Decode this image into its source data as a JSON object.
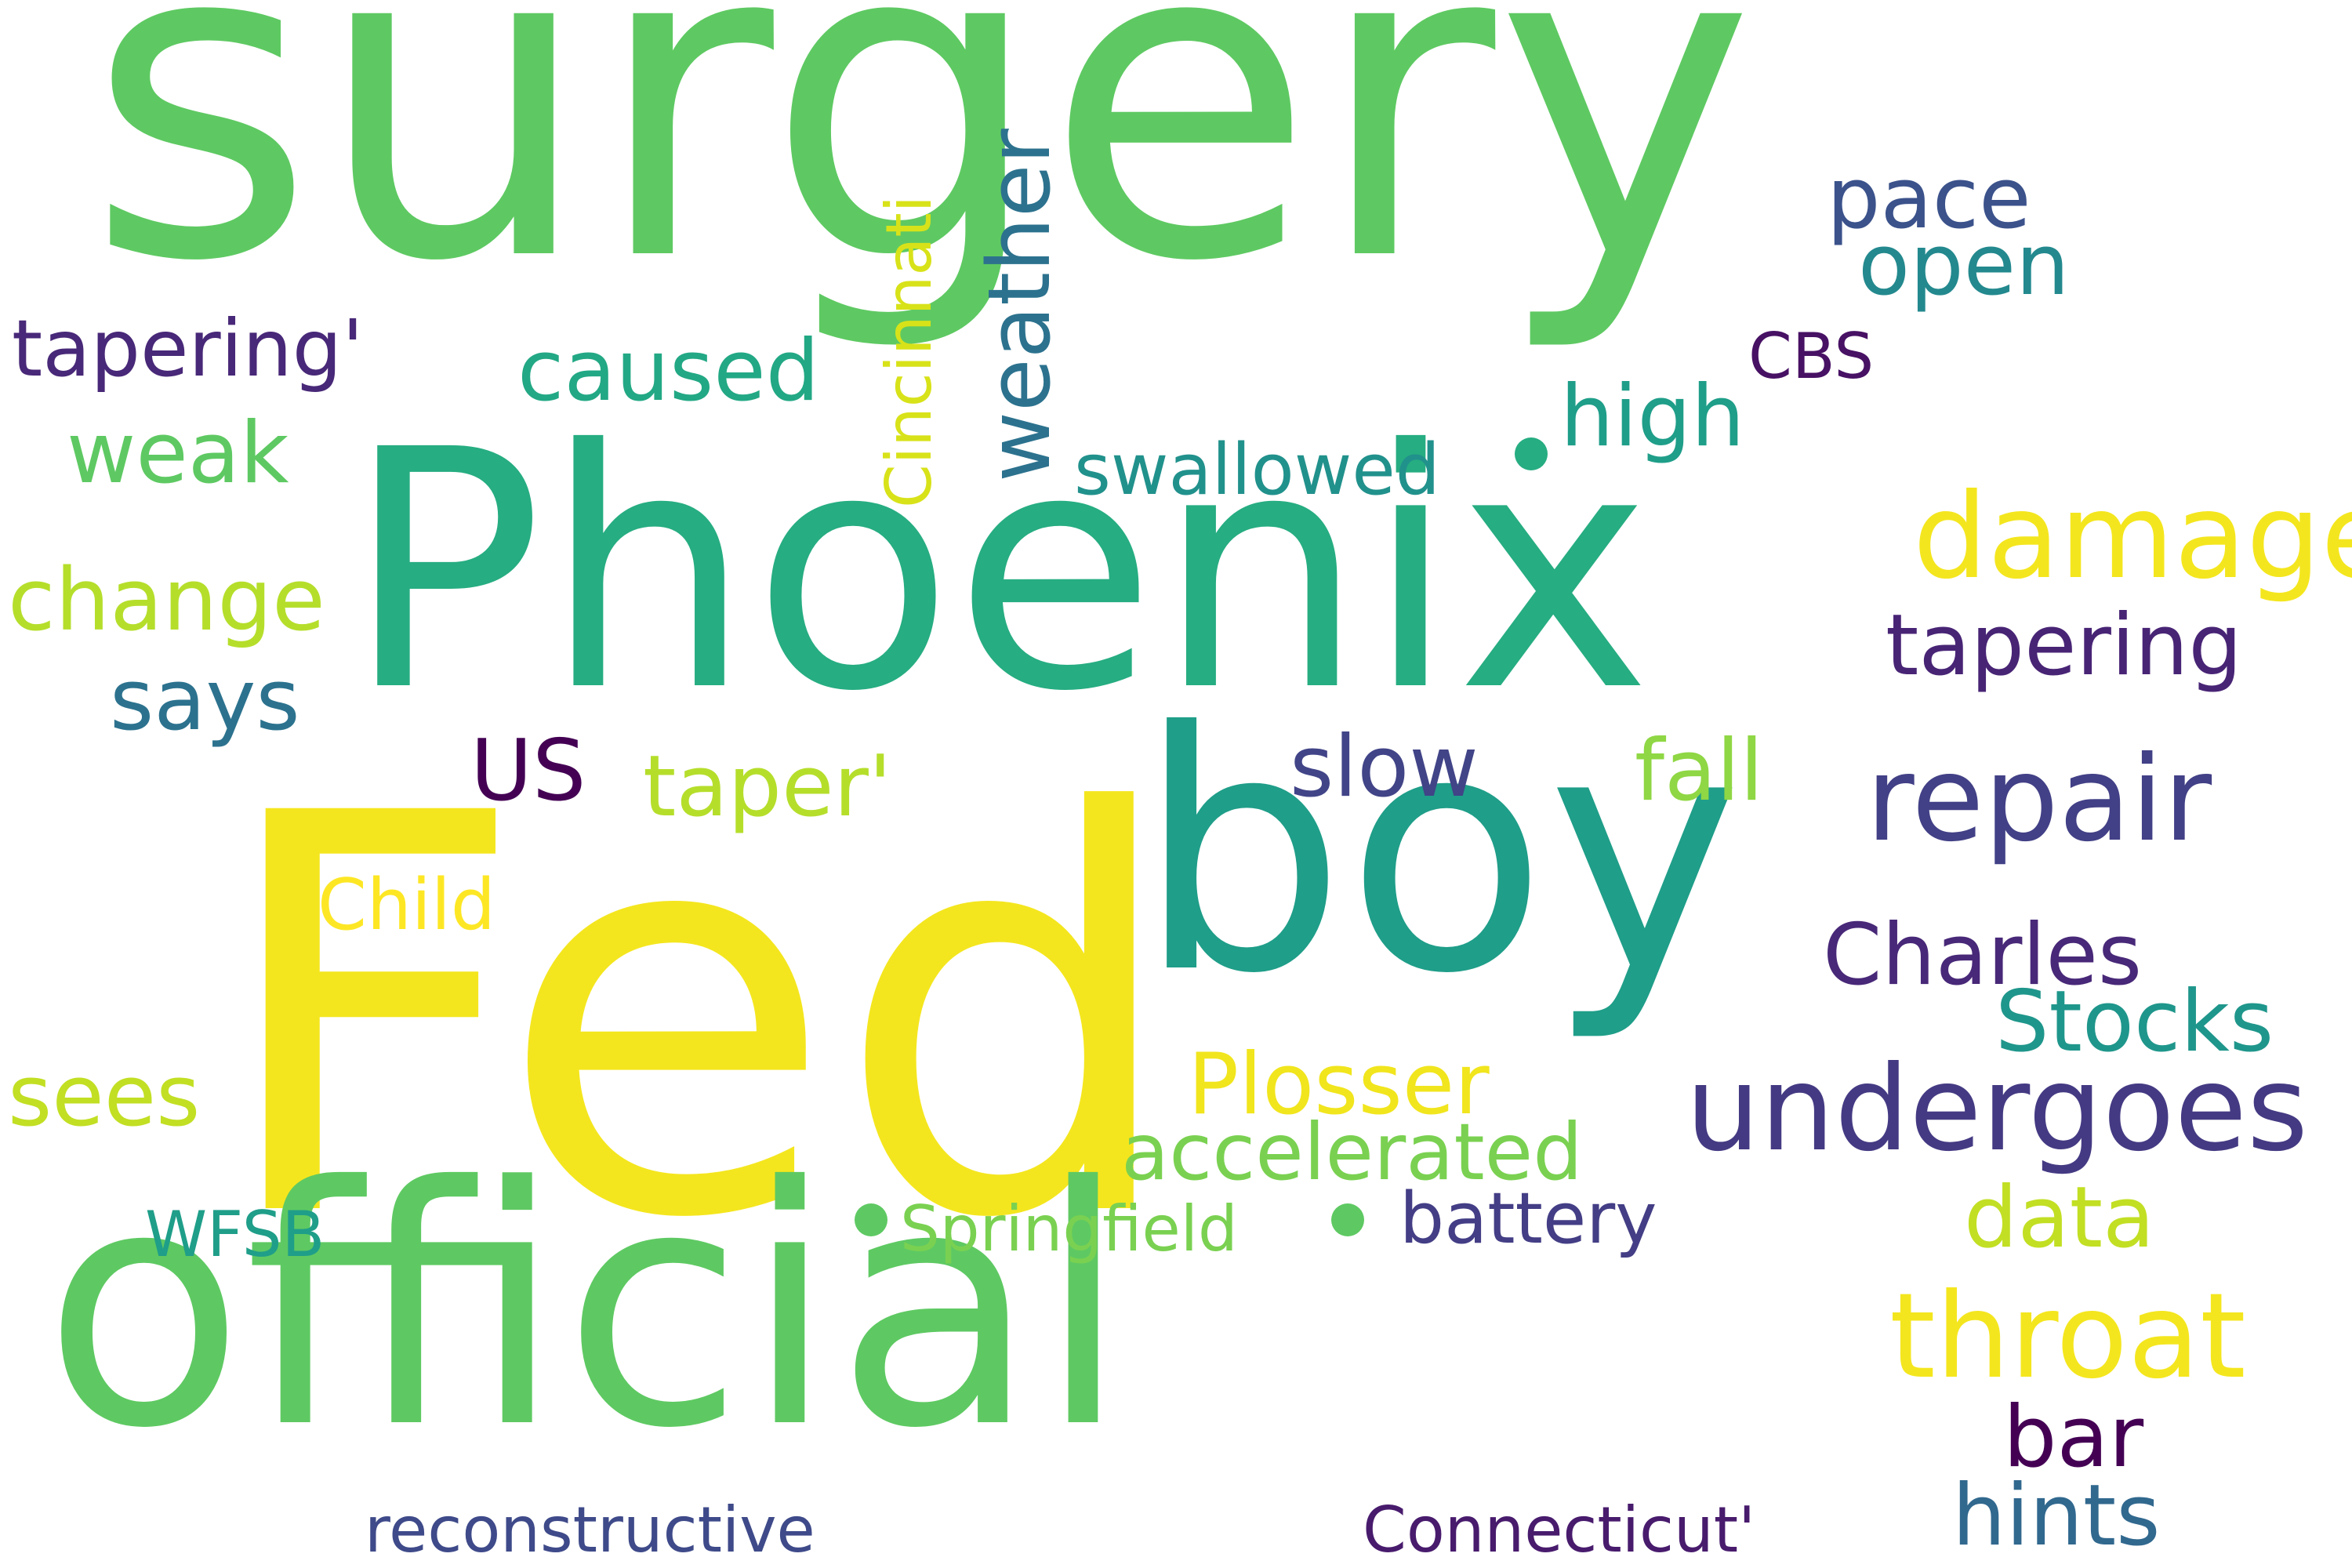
{
  "words": [
    {
      "text": "surgery",
      "color": "#5ec962"
    },
    {
      "text": "Fed",
      "color": "#f4e61e"
    },
    {
      "text": "Phoenix",
      "color": "#26ad81"
    },
    {
      "text": "boy",
      "color": "#1f9e89"
    },
    {
      "text": "official",
      "color": "#5ec962"
    },
    {
      "text": "undergoes",
      "color": "#443a83"
    },
    {
      "text": "repair",
      "color": "#424086"
    },
    {
      "text": "damage",
      "color": "#f4e61e"
    },
    {
      "text": "throat",
      "color": "#f4e61e"
    },
    {
      "text": "tapering",
      "color": "#482475"
    },
    {
      "text": "weather",
      "color": "#2c728e"
    },
    {
      "text": "Cincinnati",
      "color": "#d8e219"
    },
    {
      "text": "caused",
      "color": "#22a884"
    },
    {
      "text": "pace",
      "color": "#3b528b"
    },
    {
      "text": "open",
      "color": "#23898e"
    },
    {
      "text": "high",
      "color": "#1f9e89"
    },
    {
      "text": "tapering'",
      "color": "#482878"
    },
    {
      "text": "CBS",
      "color": "#471164"
    },
    {
      "text": "weak",
      "color": "#5ec962"
    },
    {
      "text": "swallowed",
      "color": "#21918c"
    },
    {
      "text": "change",
      "color": "#b5de2b"
    },
    {
      "text": "says",
      "color": "#2c728e"
    },
    {
      "text": "US",
      "color": "#440154"
    },
    {
      "text": "taper'",
      "color": "#b5de2b"
    },
    {
      "text": "slow",
      "color": "#414487"
    },
    {
      "text": "fall",
      "color": "#8fd744"
    },
    {
      "text": "Child",
      "color": "#fde725"
    },
    {
      "text": "Charles",
      "color": "#482878"
    },
    {
      "text": "Stocks",
      "color": "#1f968b"
    },
    {
      "text": "sees",
      "color": "#c2df23"
    },
    {
      "text": "Plosser",
      "color": "#f1e51d"
    },
    {
      "text": "accelerated",
      "color": "#7ad151"
    },
    {
      "text": "data",
      "color": "#c2df23"
    },
    {
      "text": "WFSB",
      "color": "#1f9e89"
    },
    {
      "text": "Springfield",
      "color": "#7ad151"
    },
    {
      "text": "battery",
      "color": "#433e85"
    },
    {
      "text": "bar",
      "color": "#440154"
    },
    {
      "text": "hints",
      "color": "#31688e"
    },
    {
      "text": "reconstructive",
      "color": "#3e4a89"
    },
    {
      "text": "Connecticut'",
      "color": "#481b6d"
    }
  ],
  "dots": [
    {
      "color": "#26ad81"
    },
    {
      "color": "#5ec962"
    },
    {
      "color": "#5ec962"
    }
  ]
}
